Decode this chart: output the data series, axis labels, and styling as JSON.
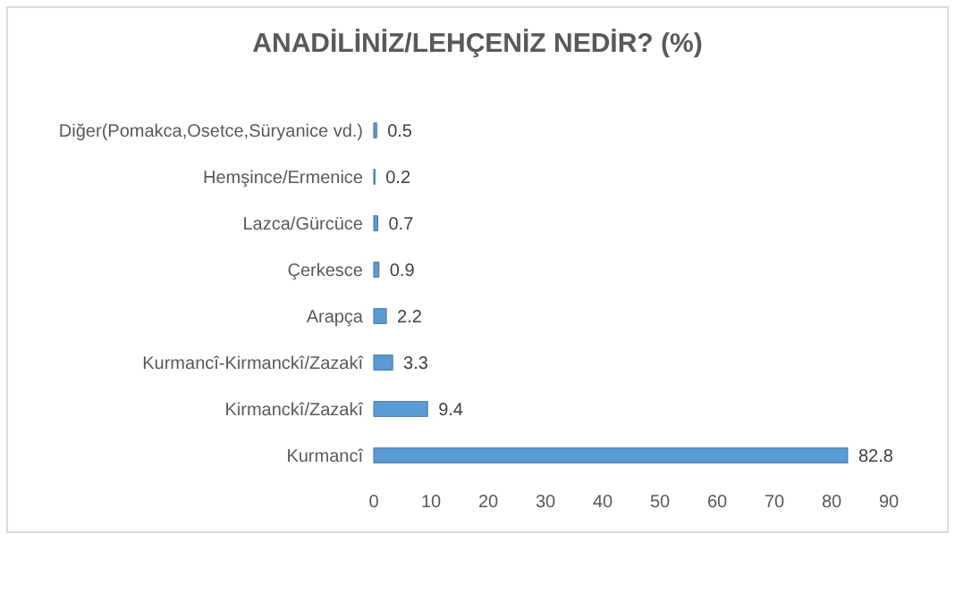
{
  "chart_data": {
    "type": "bar",
    "orientation": "horizontal",
    "title": "ANADİLİNİZ/LEHÇENİZ NEDİR? (%)",
    "categories": [
      "Diğer(Pomakca,Osetce,Süryanice vd.)",
      "Hemşince/Ermenice",
      "Lazca/Gürcüce",
      "Çerkesce",
      "Arapça",
      "Kurmancî-Kirmanckî/Zazakî",
      "Kirmanckî/Zazakî",
      "Kurmancî"
    ],
    "values": [
      0.5,
      0.2,
      0.7,
      0.9,
      2.2,
      3.3,
      9.4,
      82.8
    ],
    "color": "#5b9bd5",
    "xlim": [
      0,
      90
    ],
    "xticks": [
      0,
      10,
      20,
      30,
      40,
      50,
      60,
      70,
      80,
      90
    ],
    "data_labels": true,
    "grid": false
  }
}
